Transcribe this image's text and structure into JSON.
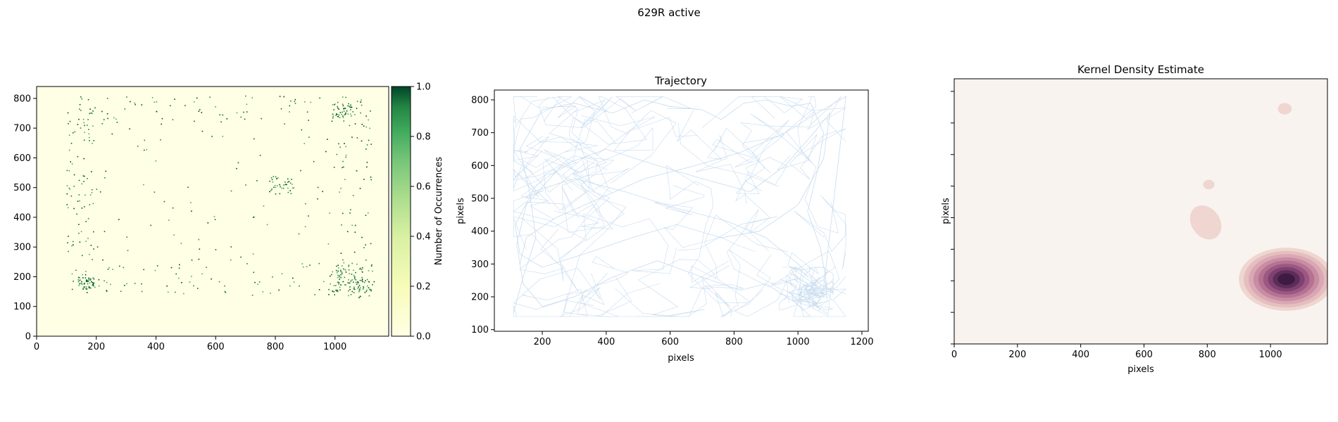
{
  "figure": {
    "suptitle": "629R active"
  },
  "chart_data": [
    {
      "type": "heatmap",
      "title": "",
      "xlabel": "",
      "ylabel": "",
      "xlim": [
        0,
        1180
      ],
      "ylim": [
        0,
        840
      ],
      "xticks": [
        0,
        200,
        400,
        600,
        800,
        1000
      ],
      "yticks": [
        0,
        100,
        200,
        300,
        400,
        500,
        600,
        700,
        800
      ],
      "colormap": "YlGn",
      "colorbar": {
        "label": "Number of Occurrences",
        "range": [
          0,
          1.0
        ],
        "ticks": [
          "0.0",
          "0.2",
          "0.4",
          "0.6",
          "0.8",
          "1.0"
        ],
        "color_low": "#ffffe5",
        "color_mid": "#addd8e",
        "color_high": "#004529"
      },
      "occupied_region": {
        "x": [
          100,
          1120
        ],
        "y": [
          130,
          810
        ]
      },
      "hotspots": [
        {
          "x": 1070,
          "y": 200,
          "weight": 1.0
        },
        {
          "x": 1030,
          "y": 185,
          "weight": 0.8
        },
        {
          "x": 820,
          "y": 510,
          "weight": 0.6
        },
        {
          "x": 1020,
          "y": 760,
          "weight": 0.5
        },
        {
          "x": 165,
          "y": 180,
          "weight": 0.4
        }
      ]
    },
    {
      "type": "line",
      "title": "Trajectory",
      "xlabel": "pixels",
      "ylabel": "pixels",
      "xlim": [
        50,
        1220
      ],
      "ylim": [
        95,
        830
      ],
      "xticks": [
        200,
        400,
        600,
        800,
        1000,
        1200
      ],
      "yticks": [
        100,
        200,
        300,
        400,
        500,
        600,
        700,
        800
      ],
      "line_color": "#c6dbef",
      "series": [
        {
          "x": [
            110,
            140,
            180,
            160,
            130,
            200,
            300,
            420,
            520,
            600,
            700,
            760,
            830,
            900,
            980,
            1040,
            1080,
            1060,
            1030,
            1070,
            1090,
            1060,
            980,
            900,
            820,
            700,
            560,
            420,
            300,
            200,
            140,
            120,
            150,
            260,
            400,
            560,
            700,
            850,
            960,
            1050,
            1100,
            1080,
            1000,
            880,
            760,
            620,
            480,
            330,
            200,
            130,
            115,
            170,
            300,
            460,
            620,
            780,
            900,
            1000,
            1080,
            1150,
            1060,
            960,
            820,
            680,
            520,
            380,
            240,
            150,
            130
          ],
          "y": [
            150,
            260,
            380,
            520,
            650,
            770,
            790,
            760,
            800,
            780,
            770,
            740,
            790,
            800,
            780,
            790,
            700,
            580,
            460,
            350,
            240,
            180,
            190,
            240,
            220,
            260,
            310,
            260,
            200,
            170,
            240,
            360,
            480,
            600,
            650,
            600,
            560,
            520,
            600,
            700,
            760,
            620,
            480,
            400,
            380,
            420,
            380,
            330,
            290,
            330,
            420,
            520,
            560,
            520,
            470,
            430,
            380,
            300,
            230,
            810,
            760,
            700,
            640,
            600,
            560,
            500,
            440,
            380,
            300
          ]
        }
      ]
    },
    {
      "type": "heatmap",
      "title": "Kernel Density Estimate",
      "xlabel": "pixels",
      "ylabel": "pixels",
      "xlim": [
        0,
        1180
      ],
      "ylim": [
        0,
        840
      ],
      "xticks": [
        0,
        200,
        400,
        600,
        800,
        1000
      ],
      "background_color": "#f9f3f0",
      "blobs": [
        {
          "x": 1050,
          "y": 205,
          "sx": 150,
          "sy": 100,
          "levels": 9
        },
        {
          "x": 1045,
          "y": 745,
          "sx": 22,
          "sy": 18,
          "levels": 1
        },
        {
          "x": 805,
          "y": 505,
          "sx": 18,
          "sy": 15,
          "levels": 1
        },
        {
          "x": 795,
          "y": 385,
          "sx": 45,
          "sy": 58,
          "levels": 1,
          "rotate": -35
        }
      ],
      "level_colors": [
        "#efd6d0",
        "#e5bfc0",
        "#d9a8b4",
        "#c98da3",
        "#b57292",
        "#9c5883",
        "#7e4170",
        "#5d2d5a",
        "#3d1b42"
      ]
    }
  ]
}
